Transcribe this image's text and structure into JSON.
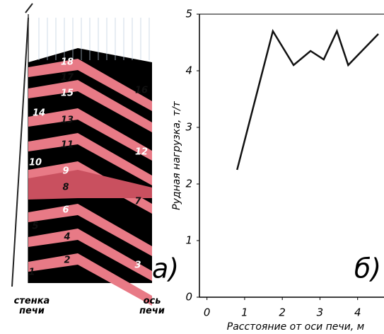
{
  "diagram": {
    "layers": [
      "1",
      "2",
      "3",
      "4",
      "5",
      "6",
      "7",
      "8",
      "9",
      "10",
      "11",
      "12",
      "13",
      "14",
      "15",
      "16",
      "17",
      "18"
    ],
    "wall_label": "стенка\nпечи",
    "axis_label": "ось\nпечи",
    "panel_label": "а)"
  },
  "chart_data": {
    "type": "line",
    "panel_label": "б)",
    "x_label": "Расстояние от оси печи, м",
    "y_label": "Рудная нагрузка, т/т",
    "xlim": [
      -0.2,
      4.7
    ],
    "ylim": [
      0,
      5
    ],
    "xticks": [
      0,
      1,
      2,
      3,
      4
    ],
    "yticks": [
      0,
      1,
      2,
      3,
      4,
      5
    ],
    "series": [
      {
        "color": "#111111",
        "x": [
          0.8,
          1.75,
          2.3,
          2.75,
          3.1,
          3.45,
          3.75,
          4.55
        ],
        "values": [
          2.25,
          4.7,
          4.1,
          4.35,
          4.2,
          4.7,
          4.1,
          4.65
        ]
      }
    ]
  }
}
